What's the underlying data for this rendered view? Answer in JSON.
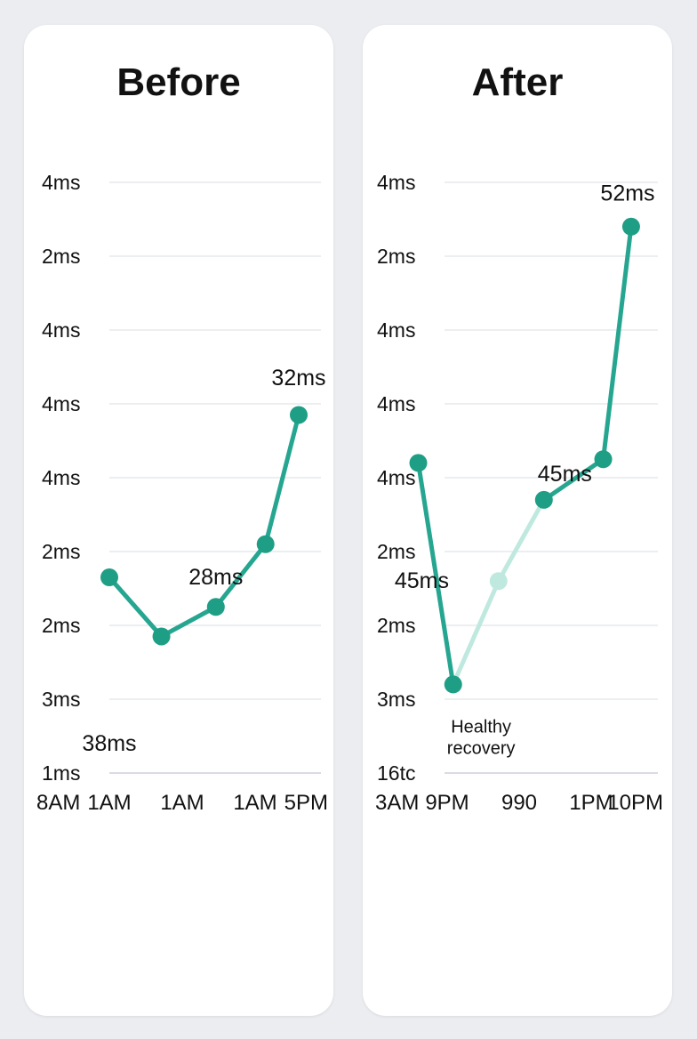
{
  "colors": {
    "page_bg": "#ebedf1",
    "card_bg": "#ffffff",
    "line": "#26a690",
    "line_faded": "#bfe9df",
    "marker": "#1f9e86",
    "grid": "#d9dde3",
    "text": "#111111"
  },
  "chart_data": [
    {
      "type": "line",
      "title": "Before",
      "y_tick_labels": [
        "4ms",
        "2ms",
        "4ms",
        "4ms",
        "4ms",
        "2ms",
        "2ms",
        "3ms",
        "1ms"
      ],
      "x_tick_labels": [
        "8AM",
        "1AM",
        "1AM",
        "1AM",
        "5PM"
      ],
      "series": [
        {
          "points": [
            {
              "x": 0.0,
              "y": 2.65
            },
            {
              "x": 1.1,
              "y": 1.85
            },
            {
              "x": 2.25,
              "y": 2.25
            },
            {
              "x": 3.3,
              "y": 3.1
            },
            {
              "x": 4.0,
              "y": 4.85
            }
          ]
        }
      ],
      "data_labels": [
        {
          "text": "38ms",
          "x": 0.0,
          "y": 0.4
        },
        {
          "text": "28ms",
          "x": 2.25,
          "y": 2.65
        },
        {
          "text": "32ms",
          "x": 4.0,
          "y": 5.35
        }
      ]
    },
    {
      "type": "line",
      "title": "After",
      "y_tick_labels": [
        "4ms",
        "2ms",
        "4ms",
        "4ms",
        "4ms",
        "2ms",
        "2ms",
        "3ms",
        "16tc"
      ],
      "x_tick_labels": [
        "3AM",
        "9PM",
        "990",
        "1PM",
        "10PM"
      ],
      "series": [
        {
          "points": [
            {
              "x": 1.0,
              "y": 4.2
            },
            {
              "x": 1.5,
              "y": 1.2
            },
            {
              "x": 2.15,
              "y": 2.6
            },
            {
              "x": 2.8,
              "y": 3.7
            },
            {
              "x": 3.65,
              "y": 4.25
            },
            {
              "x": 4.05,
              "y": 7.4
            }
          ],
          "faded_segment": [
            1,
            2
          ]
        }
      ],
      "data_labels": [
        {
          "text": "45ms",
          "x": 1.05,
          "y": 2.6
        },
        {
          "text": "45ms",
          "x": 3.1,
          "y": 4.05
        },
        {
          "text": "52ms",
          "x": 4.0,
          "y": 7.85
        }
      ],
      "annotations": [
        {
          "text": "Healthy recovery",
          "x": 1.9,
          "y": 0.55
        }
      ]
    }
  ]
}
